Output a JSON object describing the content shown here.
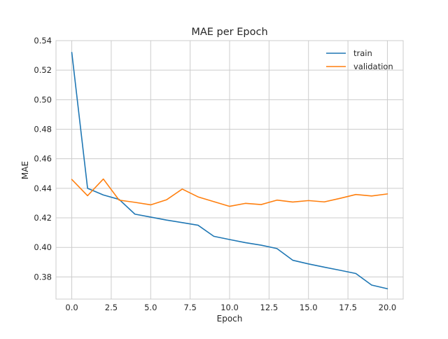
{
  "chart_data": {
    "type": "line",
    "title": "MAE per Epoch",
    "xlabel": "Epoch",
    "ylabel": "MAE",
    "xlim": [
      -1.0,
      21.0
    ],
    "ylim": [
      0.365,
      0.54
    ],
    "xticks": [
      0.0,
      2.5,
      5.0,
      7.5,
      10.0,
      12.5,
      15.0,
      17.5,
      20.0
    ],
    "xtick_labels": [
      "0.0",
      "2.5",
      "5.0",
      "7.5",
      "10.0",
      "12.5",
      "15.0",
      "17.5",
      "20.0"
    ],
    "yticks": [
      0.38,
      0.4,
      0.42,
      0.44,
      0.46,
      0.48,
      0.5,
      0.52,
      0.54
    ],
    "ytick_labels": [
      "0.38",
      "0.40",
      "0.42",
      "0.44",
      "0.46",
      "0.48",
      "0.50",
      "0.52",
      "0.54"
    ],
    "grid": true,
    "legend_position": "top-right",
    "x": [
      0,
      1,
      2,
      3,
      4,
      5,
      6,
      7,
      8,
      9,
      10,
      11,
      12,
      13,
      14,
      15,
      16,
      17,
      18,
      19,
      20
    ],
    "series": [
      {
        "name": "train",
        "color": "#1f77b4",
        "values": [
          0.532,
          0.44,
          0.4355,
          0.4325,
          0.4225,
          0.4205,
          0.4185,
          0.4168,
          0.415,
          0.4075,
          0.4053,
          0.4032,
          0.4015,
          0.3992,
          0.3913,
          0.3888,
          0.3866,
          0.3845,
          0.3823,
          0.3745,
          0.372
        ]
      },
      {
        "name": "validation",
        "color": "#ff7f0e",
        "values": [
          0.446,
          0.435,
          0.4463,
          0.432,
          0.4305,
          0.4288,
          0.4322,
          0.4395,
          0.4342,
          0.431,
          0.4278,
          0.4298,
          0.429,
          0.432,
          0.4307,
          0.4317,
          0.4308,
          0.4332,
          0.4358,
          0.4348,
          0.4362
        ]
      }
    ]
  }
}
